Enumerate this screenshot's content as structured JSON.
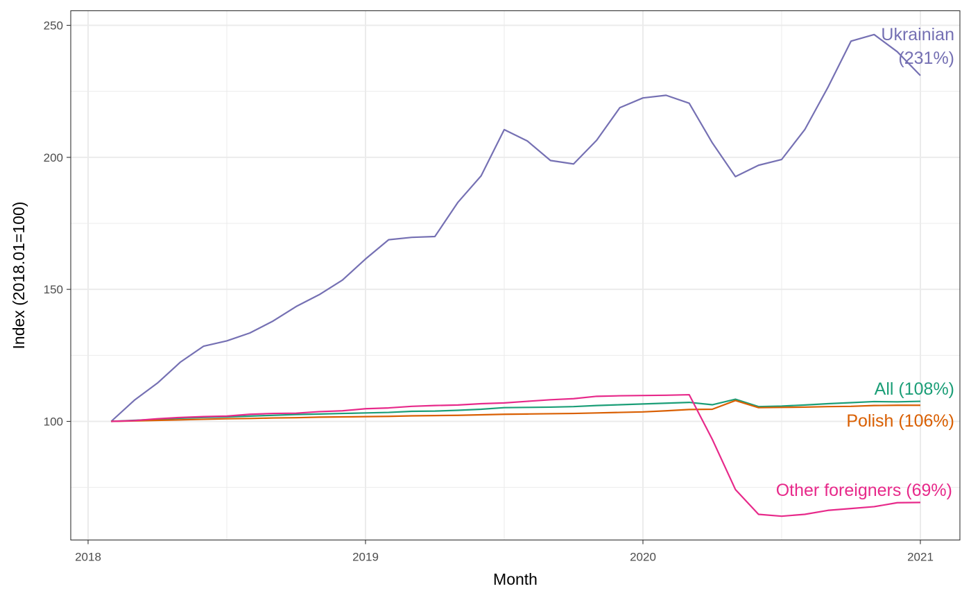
{
  "chart_data": {
    "type": "line",
    "title": "",
    "xlabel": "Month",
    "ylabel": "Index (2018.01=100)",
    "x_ticks": [
      "2018",
      "2019",
      "2020",
      "2021"
    ],
    "y_ticks": [
      100,
      150,
      200,
      250
    ],
    "xlim": [
      "2018-01",
      "2021-01"
    ],
    "ylim": [
      55,
      256
    ],
    "grid": true,
    "x": [
      "2018-02",
      "2018-03",
      "2018-04",
      "2018-05",
      "2018-06",
      "2018-07",
      "2018-08",
      "2018-09",
      "2018-10",
      "2018-11",
      "2018-12",
      "2019-01",
      "2019-02",
      "2019-03",
      "2019-04",
      "2019-05",
      "2019-06",
      "2019-07",
      "2019-08",
      "2019-09",
      "2019-10",
      "2019-11",
      "2019-12",
      "2020-01",
      "2020-02",
      "2020-03",
      "2020-04",
      "2020-05",
      "2020-06",
      "2020-07",
      "2020-08",
      "2020-09",
      "2020-10",
      "2020-11",
      "2020-12",
      "2021-01"
    ],
    "series": [
      {
        "name": "Ukrainian",
        "label_lines": [
          "Ukrainian",
          "(231%)"
        ],
        "color": "#7570b3",
        "values": [
          100,
          108,
          114.5,
          122.5,
          128.5,
          130.5,
          133.5,
          138,
          143.5,
          148,
          153.5,
          161.5,
          168.8,
          169.7,
          170,
          183,
          193,
          210.5,
          206.2,
          198.8,
          197.5,
          206.5,
          218.8,
          222.5,
          223.5,
          220.5,
          205.5,
          192.7,
          197,
          199.2,
          210.5,
          226.5,
          244,
          246.5,
          240,
          231
        ]
      },
      {
        "name": "All",
        "label_lines": [
          "All (108%)"
        ],
        "color": "#1b9e77",
        "values": [
          100,
          100.4,
          100.8,
          101.2,
          101.5,
          101.7,
          102,
          102.3,
          102.6,
          102.8,
          103,
          103.2,
          103.4,
          103.8,
          103.9,
          104.2,
          104.6,
          105.2,
          105.3,
          105.4,
          105.6,
          106,
          106.3,
          106.6,
          106.9,
          107.2,
          106.3,
          108.4,
          105.6,
          105.8,
          106.2,
          106.7,
          107.1,
          107.5,
          107.4,
          107.6
        ]
      },
      {
        "name": "Polish",
        "label_lines": [
          "Polish (106%)"
        ],
        "color": "#d95f02",
        "values": [
          100,
          100.2,
          100.4,
          100.6,
          100.8,
          101,
          101.1,
          101.3,
          101.4,
          101.6,
          101.7,
          101.8,
          101.9,
          102.1,
          102.2,
          102.3,
          102.5,
          102.7,
          102.8,
          102.9,
          103,
          103.2,
          103.4,
          103.6,
          104,
          104.5,
          104.6,
          107.9,
          105.2,
          105.3,
          105.4,
          105.6,
          105.7,
          106,
          106.1,
          106.1
        ]
      },
      {
        "name": "Other foreigners",
        "label_lines": [
          "Other foreigners (69%)"
        ],
        "color": "#e7298a",
        "values": [
          100,
          100.3,
          101,
          101.5,
          101.8,
          102,
          102.7,
          103,
          103.1,
          103.7,
          104,
          104.8,
          105.1,
          105.7,
          106,
          106.2,
          106.7,
          107,
          107.6,
          108.2,
          108.6,
          109.5,
          109.7,
          109.8,
          109.9,
          110.1,
          93.2,
          74.2,
          64.8,
          64.1,
          64.8,
          66.3,
          67,
          67.7,
          69.2,
          69.3
        ]
      }
    ]
  }
}
